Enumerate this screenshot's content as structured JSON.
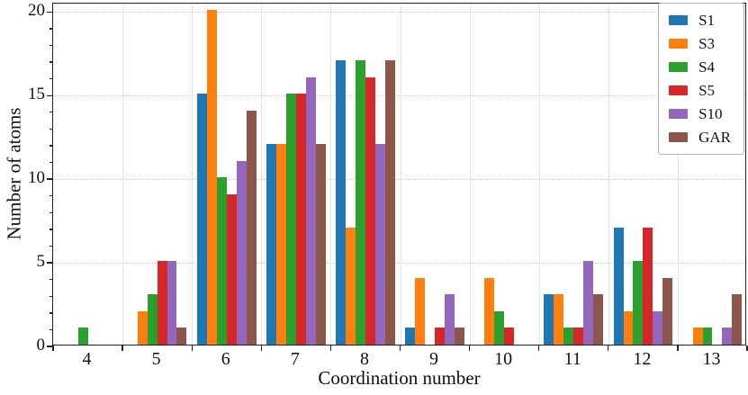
{
  "figure": {
    "background": "#ffffff",
    "text_color": "#111111",
    "grid_color": "#c9c9c9",
    "spine_color": "#222222"
  },
  "chart_data": {
    "type": "bar",
    "title": "",
    "xlabel": "Coordination number",
    "ylabel": "Number of atoms",
    "categories": [
      4,
      5,
      6,
      7,
      8,
      9,
      10,
      11,
      12,
      13
    ],
    "yticks": [
      0,
      5,
      10,
      15,
      20
    ],
    "ylim": [
      0,
      20.5
    ],
    "grid": "dotted, horizontal at y-majors, vertical at bin edges",
    "legend_position": "upper right",
    "group_width_fraction": 0.85,
    "series": [
      {
        "name": "S1",
        "color": "#1f77b4",
        "values": [
          0,
          0,
          15,
          12,
          17,
          1,
          0,
          3,
          7,
          0
        ]
      },
      {
        "name": "S3",
        "color": "#ff7f0e",
        "values": [
          0,
          2,
          20,
          12,
          7,
          4,
          4,
          3,
          2,
          1
        ]
      },
      {
        "name": "S4",
        "color": "#2ca02c",
        "values": [
          1,
          3,
          10,
          15,
          17,
          0,
          2,
          1,
          5,
          1
        ]
      },
      {
        "name": "S5",
        "color": "#d62728",
        "values": [
          0,
          5,
          9,
          15,
          16,
          1,
          1,
          1,
          7,
          0
        ]
      },
      {
        "name": "S10",
        "color": "#9467bd",
        "values": [
          0,
          5,
          11,
          16,
          12,
          3,
          0,
          5,
          2,
          1
        ]
      },
      {
        "name": "GAR",
        "color": "#8c564b",
        "values": [
          0,
          1,
          14,
          12,
          17,
          1,
          0,
          3,
          4,
          3
        ]
      }
    ]
  }
}
